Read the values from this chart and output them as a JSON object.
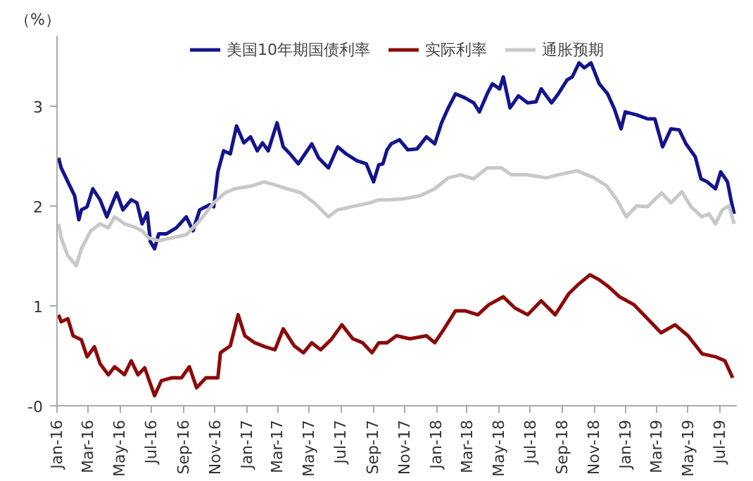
{
  "chart_data": {
    "type": "line",
    "ylabel": "（%）",
    "legend": "top",
    "grid": false,
    "line_style": "solid",
    "marker": "none",
    "xlim": [
      "2016-01-01",
      "2019-08-03"
    ],
    "ylim": [
      0,
      3.7
    ],
    "yticks": [
      {
        "value": 0,
        "label": "-0"
      },
      1,
      2,
      3
    ],
    "xticks": [
      {
        "value": "2016-01-01",
        "label": "Jan-16"
      },
      {
        "value": "2016-03-01",
        "label": "Mar-16"
      },
      {
        "value": "2016-05-01",
        "label": "May-16"
      },
      {
        "value": "2016-07-01",
        "label": "Jul-16"
      },
      {
        "value": "2016-09-01",
        "label": "Sep-16"
      },
      {
        "value": "2016-11-01",
        "label": "Nov-16"
      },
      {
        "value": "2017-01-01",
        "label": "Jan-17"
      },
      {
        "value": "2017-03-01",
        "label": "Mar-17"
      },
      {
        "value": "2017-05-01",
        "label": "May-17"
      },
      {
        "value": "2017-07-01",
        "label": "Jul-17"
      },
      {
        "value": "2017-09-01",
        "label": "Sep-17"
      },
      {
        "value": "2017-11-01",
        "label": "Nov-17"
      },
      {
        "value": "2018-01-01",
        "label": "Jan-18"
      },
      {
        "value": "2018-03-01",
        "label": "Mar-18"
      },
      {
        "value": "2018-05-01",
        "label": "May-18"
      },
      {
        "value": "2018-07-01",
        "label": "Jul-18"
      },
      {
        "value": "2018-09-01",
        "label": "Sep-18"
      },
      {
        "value": "2018-11-01",
        "label": "Nov-18"
      },
      {
        "value": "2019-01-01",
        "label": "Jan-19"
      },
      {
        "value": "2019-03-01",
        "label": "Mar-19"
      },
      {
        "value": "2019-05-01",
        "label": "May-19"
      },
      {
        "value": "2019-07-01",
        "label": "Jul-19"
      }
    ],
    "series": [
      {
        "name": "美国10年期国债利率",
        "color": "#14148c",
        "x": [
          "2016-01-04",
          "2016-01-09",
          "2016-01-22",
          "2016-02-04",
          "2016-02-12",
          "2016-02-17",
          "2016-02-28",
          "2016-03-10",
          "2016-03-24",
          "2016-04-06",
          "2016-04-25",
          "2016-05-07",
          "2016-05-23",
          "2016-06-03",
          "2016-06-13",
          "2016-06-23",
          "2016-06-29",
          "2016-07-07",
          "2016-07-15",
          "2016-07-30",
          "2016-08-18",
          "2016-09-06",
          "2016-09-19",
          "2016-10-02",
          "2016-10-21",
          "2016-10-29",
          "2016-11-06",
          "2016-11-17",
          "2016-11-30",
          "2016-12-12",
          "2016-12-26",
          "2017-01-08",
          "2017-01-21",
          "2017-01-31",
          "2017-02-11",
          "2017-02-28",
          "2017-03-12",
          "2017-03-25",
          "2017-04-10",
          "2017-04-23",
          "2017-05-06",
          "2017-05-19",
          "2017-06-07",
          "2017-06-25",
          "2017-07-11",
          "2017-08-01",
          "2017-08-19",
          "2017-09-02",
          "2017-09-12",
          "2017-09-20",
          "2017-09-28",
          "2017-10-06",
          "2017-10-22",
          "2017-11-07",
          "2017-11-25",
          "2017-12-13",
          "2017-12-29",
          "2018-01-11",
          "2018-01-24",
          "2018-02-07",
          "2018-02-25",
          "2018-03-14",
          "2018-03-25",
          "2018-04-09",
          "2018-04-19",
          "2018-05-03",
          "2018-05-10",
          "2018-05-23",
          "2018-06-08",
          "2018-06-26",
          "2018-07-12",
          "2018-07-22",
          "2018-08-11",
          "2018-08-24",
          "2018-09-10",
          "2018-09-20",
          "2018-10-03",
          "2018-10-13",
          "2018-10-26",
          "2018-11-11",
          "2018-11-27",
          "2018-12-10",
          "2018-12-23",
          "2018-12-31",
          "2019-01-22",
          "2019-02-12",
          "2019-02-26",
          "2019-03-13",
          "2019-03-29",
          "2019-04-14",
          "2019-04-27",
          "2019-05-15",
          "2019-05-26",
          "2019-06-07",
          "2019-06-23",
          "2019-07-03",
          "2019-07-16",
          "2019-07-24",
          "2019-07-29"
        ],
        "values": [
          2.48,
          2.38,
          2.24,
          2.1,
          1.86,
          1.96,
          1.99,
          2.17,
          2.06,
          1.89,
          2.13,
          1.96,
          2.06,
          2.03,
          1.82,
          1.93,
          1.64,
          1.57,
          1.72,
          1.72,
          1.78,
          1.89,
          1.75,
          1.96,
          2.01,
          1.99,
          2.34,
          2.55,
          2.52,
          2.8,
          2.63,
          2.69,
          2.55,
          2.63,
          2.55,
          2.83,
          2.59,
          2.52,
          2.42,
          2.52,
          2.62,
          2.48,
          2.38,
          2.59,
          2.52,
          2.45,
          2.42,
          2.24,
          2.41,
          2.42,
          2.56,
          2.62,
          2.66,
          2.56,
          2.57,
          2.69,
          2.62,
          2.83,
          2.98,
          3.12,
          3.08,
          3.03,
          2.94,
          3.12,
          3.22,
          3.17,
          3.29,
          2.98,
          3.1,
          3.03,
          3.04,
          3.17,
          3.03,
          3.12,
          3.26,
          3.29,
          3.43,
          3.38,
          3.43,
          3.22,
          3.12,
          2.97,
          2.77,
          2.94,
          2.91,
          2.87,
          2.87,
          2.59,
          2.77,
          2.76,
          2.62,
          2.49,
          2.27,
          2.24,
          2.17,
          2.34,
          2.24,
          2.03,
          1.92
        ]
      },
      {
        "name": "实际利率",
        "color": "#8b0a0a",
        "x": [
          "2016-01-04",
          "2016-01-09",
          "2016-01-22",
          "2016-02-01",
          "2016-02-17",
          "2016-02-28",
          "2016-03-13",
          "2016-03-24",
          "2016-04-09",
          "2016-04-21",
          "2016-05-10",
          "2016-05-23",
          "2016-06-05",
          "2016-06-18",
          "2016-07-07",
          "2016-07-20",
          "2016-08-10",
          "2016-08-28",
          "2016-09-12",
          "2016-09-26",
          "2016-10-14",
          "2016-11-06",
          "2016-11-11",
          "2016-11-30",
          "2016-12-15",
          "2016-12-28",
          "2017-01-16",
          "2017-02-05",
          "2017-02-24",
          "2017-03-12",
          "2017-04-02",
          "2017-04-20",
          "2017-05-06",
          "2017-05-23",
          "2017-06-12",
          "2017-07-03",
          "2017-07-24",
          "2017-08-12",
          "2017-08-30",
          "2017-09-12",
          "2017-09-28",
          "2017-10-16",
          "2017-11-11",
          "2017-12-13",
          "2017-12-29",
          "2018-01-16",
          "2018-02-07",
          "2018-02-25",
          "2018-03-22",
          "2018-04-12",
          "2018-05-10",
          "2018-06-01",
          "2018-06-26",
          "2018-07-22",
          "2018-08-18",
          "2018-09-13",
          "2018-10-03",
          "2018-10-24",
          "2018-11-11",
          "2018-11-29",
          "2018-12-20",
          "2019-01-17",
          "2019-02-12",
          "2019-03-10",
          "2019-04-06",
          "2019-05-01",
          "2019-05-28",
          "2019-06-23",
          "2019-07-11",
          "2019-07-26"
        ],
        "values": [
          0.91,
          0.84,
          0.87,
          0.7,
          0.66,
          0.49,
          0.59,
          0.42,
          0.31,
          0.39,
          0.31,
          0.45,
          0.31,
          0.38,
          0.1,
          0.25,
          0.28,
          0.28,
          0.39,
          0.18,
          0.28,
          0.28,
          0.53,
          0.6,
          0.91,
          0.7,
          0.63,
          0.59,
          0.56,
          0.77,
          0.6,
          0.53,
          0.63,
          0.56,
          0.66,
          0.81,
          0.67,
          0.63,
          0.53,
          0.63,
          0.63,
          0.7,
          0.67,
          0.7,
          0.63,
          0.77,
          0.95,
          0.95,
          0.91,
          1.01,
          1.09,
          0.98,
          0.91,
          1.05,
          0.91,
          1.12,
          1.22,
          1.31,
          1.26,
          1.19,
          1.09,
          1.01,
          0.87,
          0.73,
          0.81,
          0.7,
          0.52,
          0.49,
          0.45,
          0.28
        ]
      },
      {
        "name": "通胀预期",
        "color": "#c8c8c8",
        "x": [
          "2016-01-04",
          "2016-01-09",
          "2016-01-22",
          "2016-02-07",
          "2016-02-17",
          "2016-03-06",
          "2016-03-24",
          "2016-04-09",
          "2016-04-21",
          "2016-05-10",
          "2016-05-28",
          "2016-06-13",
          "2016-06-25",
          "2016-07-15",
          "2016-08-10",
          "2016-09-06",
          "2016-10-02",
          "2016-10-29",
          "2016-11-20",
          "2016-12-08",
          "2017-01-11",
          "2017-02-03",
          "2017-02-24",
          "2017-03-20",
          "2017-04-15",
          "2017-05-11",
          "2017-06-07",
          "2017-06-25",
          "2017-07-30",
          "2017-08-26",
          "2017-09-12",
          "2017-09-28",
          "2017-10-30",
          "2017-11-30",
          "2017-12-29",
          "2018-01-24",
          "2018-02-17",
          "2018-03-14",
          "2018-04-09",
          "2018-05-06",
          "2018-05-26",
          "2018-06-26",
          "2018-08-01",
          "2018-08-24",
          "2018-09-29",
          "2018-11-01",
          "2018-11-25",
          "2018-12-15",
          "2019-01-02",
          "2019-01-22",
          "2019-02-12",
          "2019-03-11",
          "2019-03-29",
          "2019-04-19",
          "2019-05-07",
          "2019-05-28",
          "2019-06-10",
          "2019-06-23",
          "2019-07-06",
          "2019-07-19",
          "2019-07-29"
        ],
        "values": [
          1.82,
          1.68,
          1.5,
          1.4,
          1.57,
          1.75,
          1.82,
          1.78,
          1.89,
          1.82,
          1.79,
          1.75,
          1.68,
          1.65,
          1.68,
          1.71,
          1.85,
          2.03,
          2.13,
          2.17,
          2.2,
          2.24,
          2.21,
          2.17,
          2.13,
          2.03,
          1.89,
          1.96,
          2.0,
          2.03,
          2.06,
          2.06,
          2.07,
          2.1,
          2.17,
          2.28,
          2.31,
          2.27,
          2.38,
          2.38,
          2.31,
          2.31,
          2.28,
          2.31,
          2.35,
          2.28,
          2.2,
          2.06,
          1.89,
          2.0,
          1.99,
          2.13,
          2.03,
          2.14,
          1.99,
          1.89,
          1.92,
          1.82,
          1.96,
          2.0,
          1.82
        ]
      }
    ]
  }
}
